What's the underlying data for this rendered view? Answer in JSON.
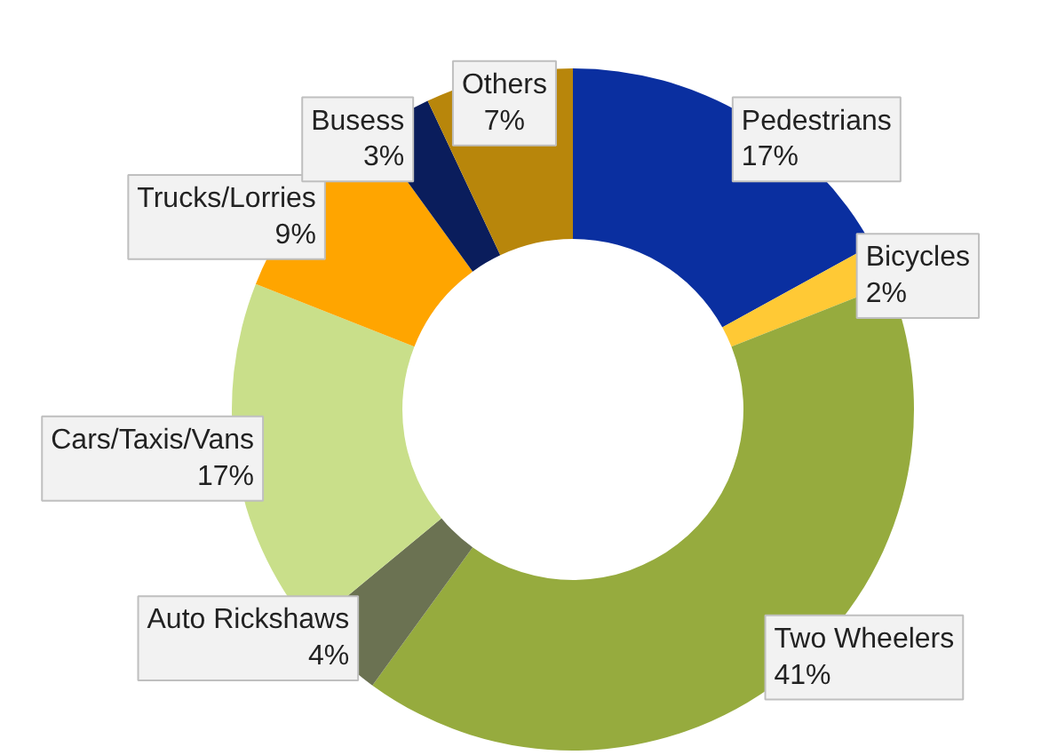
{
  "chart_data": {
    "type": "donut",
    "categories": [
      "Pedestrians",
      "Bicycles",
      "Two Wheelers",
      "Auto Rickshaws",
      "Cars/Taxis/Vans",
      "Trucks/Lorries",
      "Busess",
      "Others"
    ],
    "values": [
      17,
      2,
      41,
      4,
      17,
      9,
      3,
      7
    ],
    "value_labels": [
      "17%",
      "2%",
      "41%",
      "4%",
      "17%",
      "9%",
      "3%",
      "7%"
    ],
    "colors": [
      "#0a2fa0",
      "#ffc935",
      "#96ab3e",
      "#6b7252",
      "#c9df8a",
      "#ffa500",
      "#0a1d5c",
      "#b8860b"
    ]
  }
}
